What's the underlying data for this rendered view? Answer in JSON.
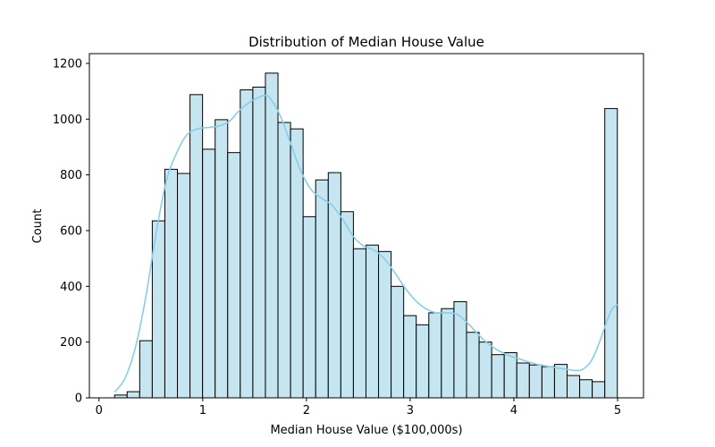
{
  "chart_data": {
    "type": "bar",
    "title": "Distribution of Median House Value",
    "xlabel": "Median House Value ($100,000s)",
    "ylabel": "Count",
    "xlim": [
      -0.093,
      5.25
    ],
    "ylim": [
      0,
      1235
    ],
    "xticks": [
      0,
      1,
      2,
      3,
      4,
      5
    ],
    "yticks": [
      0,
      200,
      400,
      600,
      800,
      1000,
      1200
    ],
    "grid": false,
    "bin_start": 0.15,
    "bin_width": 0.1212,
    "values": [
      10,
      22,
      205,
      635,
      820,
      805,
      1088,
      892,
      998,
      880,
      1105,
      1115,
      1165,
      988,
      965,
      650,
      782,
      808,
      668,
      535,
      548,
      525,
      400,
      295,
      262,
      305,
      320,
      345,
      235,
      200,
      155,
      162,
      125,
      118,
      112,
      120,
      80,
      65,
      58,
      1038
    ],
    "bar_color": "#c5e6f1",
    "edge_color": "#000000",
    "kde_color": "#87ceeb",
    "kde": {
      "x": [
        0.15,
        0.25,
        0.35,
        0.45,
        0.55,
        0.65,
        0.75,
        0.85,
        0.95,
        1.05,
        1.15,
        1.25,
        1.35,
        1.45,
        1.55,
        1.6,
        1.65,
        1.75,
        1.85,
        1.95,
        2.05,
        2.15,
        2.25,
        2.35,
        2.45,
        2.55,
        2.65,
        2.75,
        2.85,
        2.95,
        3.05,
        3.15,
        3.25,
        3.35,
        3.45,
        3.55,
        3.65,
        3.75,
        3.85,
        3.95,
        4.05,
        4.15,
        4.25,
        4.35,
        4.45,
        4.55,
        4.6,
        4.65,
        4.7,
        4.75,
        4.8,
        4.85,
        4.9,
        4.95,
        5.0
      ],
      "y": [
        20,
        70,
        180,
        360,
        590,
        780,
        880,
        945,
        965,
        970,
        975,
        990,
        1030,
        1060,
        1080,
        1085,
        1075,
        1010,
        910,
        810,
        745,
        715,
        690,
        640,
        580,
        545,
        530,
        500,
        450,
        395,
        350,
        320,
        305,
        305,
        300,
        270,
        230,
        195,
        170,
        152,
        140,
        128,
        118,
        112,
        105,
        100,
        98,
        100,
        112,
        135,
        175,
        225,
        278,
        320,
        335
      ]
    }
  }
}
